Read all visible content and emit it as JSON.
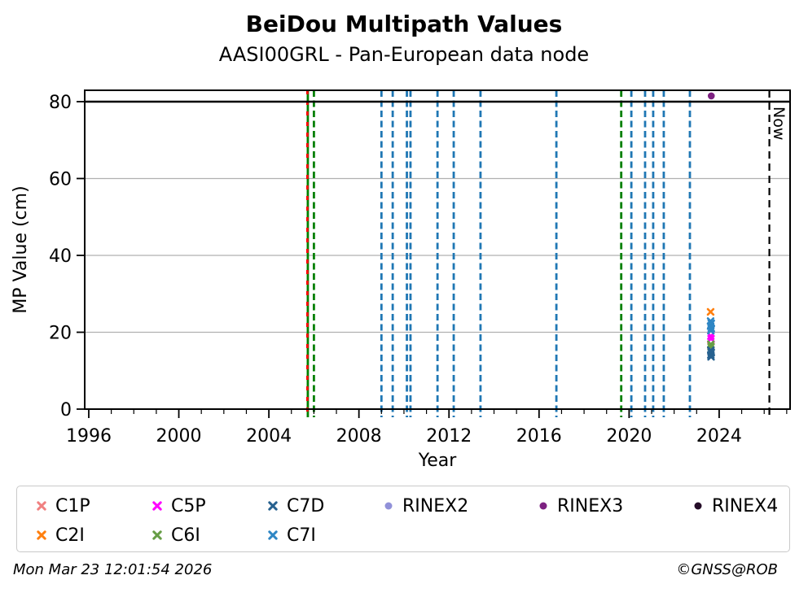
{
  "header": {
    "title": "BeiDou Multipath Values",
    "subtitle": "AASI00GRL - Pan-European data node"
  },
  "footer": {
    "timestamp": "Mon Mar 23 12:01:54 2026",
    "copyright": "©GNSS@ROB"
  },
  "chart_data": {
    "type": "scatter",
    "title": "BeiDou Multipath Values",
    "subtitle": "AASI00GRL - Pan-European data node",
    "xlabel": "Year",
    "ylabel": "MP Value (cm)",
    "xlim": [
      1995.82,
      2027.15
    ],
    "ylim": [
      0,
      82.96
    ],
    "xticks_major": [
      1996,
      2000,
      2004,
      2008,
      2012,
      2016,
      2020,
      2024
    ],
    "xticks_minor_step": 1,
    "yticks": [
      0,
      20,
      40,
      60,
      80
    ],
    "grid_y": [
      20,
      40,
      60
    ],
    "grid_color": "#b0b0b0",
    "hline": {
      "y": 80,
      "color": "#000000",
      "width": 2.5
    },
    "event_lines": [
      {
        "x": 2005.73,
        "color": "#008000",
        "style": "solid"
      },
      {
        "x": 2005.71,
        "color": "#ff0000",
        "style": "dashed"
      },
      {
        "x": 2006.0,
        "color": "#008000",
        "style": "dashed"
      },
      {
        "x": 2009.0,
        "color": "#1f77b4",
        "style": "dashed"
      },
      {
        "x": 2009.5,
        "color": "#1f77b4",
        "style": "dashed"
      },
      {
        "x": 2010.13,
        "color": "#1f77b4",
        "style": "dashed"
      },
      {
        "x": 2010.29,
        "color": "#1f77b4",
        "style": "dashed"
      },
      {
        "x": 2011.49,
        "color": "#1f77b4",
        "style": "dashed"
      },
      {
        "x": 2012.21,
        "color": "#1f77b4",
        "style": "dashed"
      },
      {
        "x": 2013.4,
        "color": "#1f77b4",
        "style": "dashed"
      },
      {
        "x": 2016.77,
        "color": "#1f77b4",
        "style": "dashed"
      },
      {
        "x": 2019.65,
        "color": "#008000",
        "style": "dashed"
      },
      {
        "x": 2020.1,
        "color": "#1f77b4",
        "style": "dashed"
      },
      {
        "x": 2020.71,
        "color": "#1f77b4",
        "style": "dashed"
      },
      {
        "x": 2021.07,
        "color": "#1f77b4",
        "style": "dashed"
      },
      {
        "x": 2021.54,
        "color": "#1f77b4",
        "style": "dashed"
      },
      {
        "x": 2022.7,
        "color": "#1f77b4",
        "style": "dashed"
      }
    ],
    "now_line": {
      "x": 2026.23,
      "label": "Now",
      "color": "#000000",
      "style": "dashed"
    },
    "series": [
      {
        "name": "C1P",
        "color": "#f08080",
        "marker": "x",
        "points": [
          [
            2023.63,
            16.6
          ]
        ]
      },
      {
        "name": "C2I",
        "color": "#ff7f0e",
        "marker": "x",
        "points": [
          [
            2023.62,
            25.3
          ]
        ]
      },
      {
        "name": "C5P",
        "color": "#ff00ff",
        "marker": "x",
        "points": [
          [
            2023.63,
            19.0
          ],
          [
            2023.64,
            18.3
          ]
        ]
      },
      {
        "name": "C6I",
        "color": "#669d45",
        "marker": "x",
        "points": [
          [
            2023.63,
            16.9
          ],
          [
            2023.64,
            16.2
          ]
        ]
      },
      {
        "name": "C7D",
        "color": "#27618f",
        "marker": "x",
        "points": [
          [
            2023.63,
            15.3
          ],
          [
            2023.65,
            14.7
          ],
          [
            2023.63,
            14.1
          ],
          [
            2023.64,
            13.6
          ]
        ]
      },
      {
        "name": "C7I",
        "color": "#2e86c4",
        "marker": "x",
        "points": [
          [
            2023.62,
            22.9
          ],
          [
            2023.65,
            22.3
          ],
          [
            2023.62,
            21.6
          ],
          [
            2023.65,
            21.0
          ],
          [
            2023.63,
            20.4
          ]
        ]
      },
      {
        "name": "RINEX2",
        "color": "#9191d9",
        "marker": "circle",
        "points": []
      },
      {
        "name": "RINEX3",
        "color": "#7d2181",
        "marker": "circle",
        "points": [
          [
            2023.65,
            81.5
          ]
        ]
      },
      {
        "name": "RINEX4",
        "color": "#250d28",
        "marker": "circle",
        "points": []
      }
    ],
    "legend": {
      "position": "bottom",
      "order": [
        "C1P",
        "C5P",
        "C7D",
        "RINEX2",
        "RINEX3",
        "RINEX4",
        "C2I",
        "C6I",
        "C7I"
      ]
    }
  }
}
